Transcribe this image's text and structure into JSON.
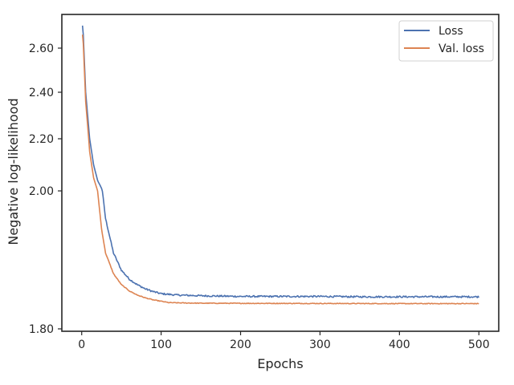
{
  "chart_data": {
    "type": "line",
    "title": "",
    "xlabel": "Epochs",
    "ylabel": "Negative log-likelihood",
    "xlim": [
      -25,
      525
    ],
    "ylim_approx": [
      1.8,
      2.75
    ],
    "y_scale": "compressed log-like (ticks at 1.80, 2.00, 2.20, 2.40, 2.60)",
    "x_ticks": [
      0,
      100,
      200,
      300,
      400,
      500
    ],
    "x_tick_labels": [
      "0",
      "100",
      "200",
      "300",
      "400",
      "500"
    ],
    "y_ticks": [
      1.8,
      2.0,
      2.2,
      2.4,
      2.6
    ],
    "y_tick_labels": [
      "1.80",
      "2.00",
      "2.20",
      "2.40",
      "2.60"
    ],
    "grid": false,
    "legend_position": "top-right",
    "series": [
      {
        "name": "Loss",
        "color": "#4c72b0",
        "x": [
          1,
          2,
          5,
          10,
          15,
          20,
          25,
          30,
          40,
          50,
          60,
          70,
          80,
          90,
          100,
          120,
          150,
          200,
          250,
          300,
          350,
          400,
          450,
          500
        ],
        "y": [
          2.7,
          2.66,
          2.4,
          2.2,
          2.1,
          2.04,
          2.01,
          1.96,
          1.91,
          1.885,
          1.872,
          1.864,
          1.858,
          1.854,
          1.851,
          1.849,
          1.848,
          1.847,
          1.847,
          1.847,
          1.8465,
          1.8465,
          1.8465,
          1.8465
        ],
        "noise": 0.0012
      },
      {
        "name": "Val. loss",
        "color": "#dd8452",
        "x": [
          1,
          2,
          5,
          10,
          15,
          20,
          25,
          30,
          40,
          50,
          60,
          70,
          80,
          90,
          100,
          110,
          130,
          150,
          200,
          300,
          400,
          500
        ],
        "y": [
          2.66,
          2.62,
          2.36,
          2.15,
          2.05,
          2.0,
          1.945,
          1.91,
          1.88,
          1.864,
          1.855,
          1.849,
          1.845,
          1.842,
          1.84,
          1.838,
          1.8375,
          1.8372,
          1.837,
          1.8368,
          1.8366,
          1.8366
        ],
        "noise": 0.0005
      }
    ]
  }
}
